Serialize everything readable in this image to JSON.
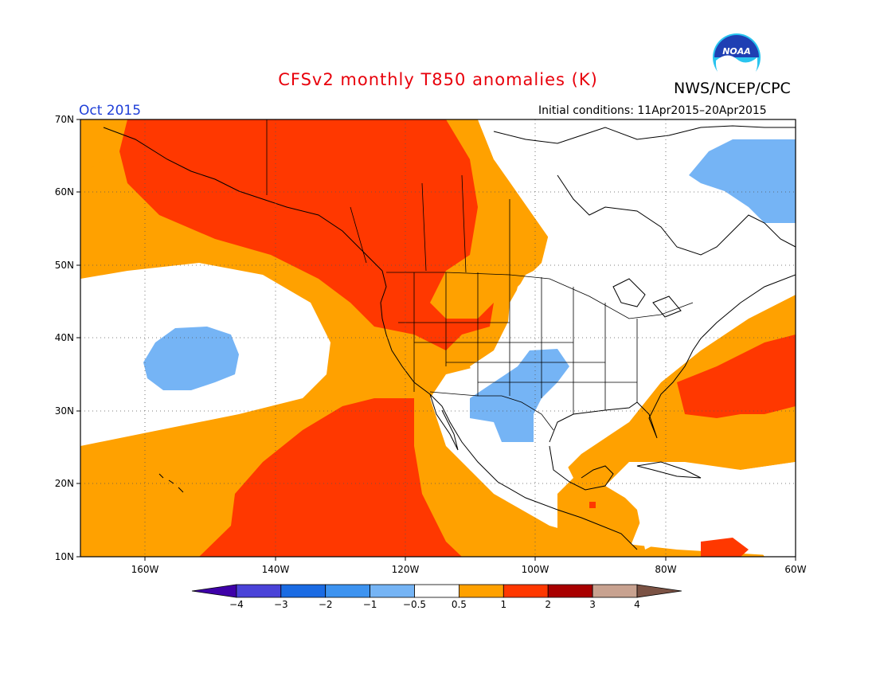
{
  "header": {
    "title": "CFSv2 monthly T850 anomalies (K)",
    "agency": "NWS/NCEP/CPC",
    "month": "Oct 2015",
    "initial_conditions": "Initial conditions: 11Apr2015–20Apr2015",
    "logo_text": "NOAA"
  },
  "map": {
    "region": "North America and eastern Pacific",
    "lon_range": [
      -170,
      -60
    ],
    "lat_range": [
      10,
      70
    ],
    "lat_labels": [
      "70N",
      "60N",
      "50N",
      "40N",
      "30N",
      "20N",
      "10N"
    ],
    "lon_labels": [
      "160W",
      "140W",
      "120W",
      "100W",
      "80W",
      "60W"
    ],
    "colors": {
      "ocean_neutral": "#ffffff",
      "warm_0_5_1": "#ffa100",
      "warm_1_2": "#ff3800",
      "warm_2_3": "#a80000",
      "cool_neg1_neg0_5": "#75b4f5",
      "coast": "#000000"
    }
  },
  "legend": {
    "tick_labels": [
      "−4",
      "−3",
      "−2",
      "−1",
      "−0.5",
      "0.5",
      "1",
      "2",
      "3",
      "4"
    ],
    "colors": [
      "#3e00a8",
      "#4a43d8",
      "#1a6be3",
      "#3d93f0",
      "#75b4f5",
      "#ffffff",
      "#ffa100",
      "#ff3800",
      "#a80000",
      "#c8a290",
      "#7b5244"
    ]
  }
}
